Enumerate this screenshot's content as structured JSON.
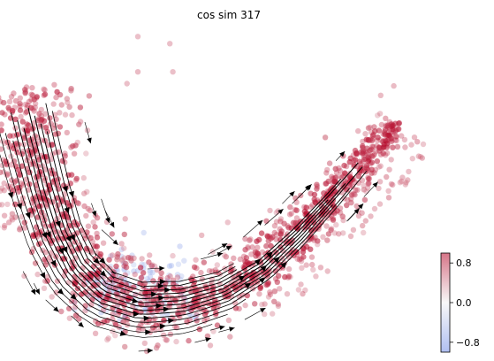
{
  "chart_data": {
    "type": "scatter",
    "title": "cos sim 317",
    "xlabel": "",
    "ylabel": "",
    "grid": false,
    "axes_visible": false,
    "colormap": {
      "low": "#6f8ce8",
      "mid": "#f2f2f2",
      "high": "#b40426"
    },
    "point_alpha": 0.35,
    "colorbar": {
      "range": [
        -1,
        1
      ],
      "ticks": [
        0.8,
        0.0,
        -0.8
      ],
      "tick_labels": [
        "0.8",
        "0.0",
        "−0.8"
      ]
    },
    "embedding_xlim": [
      -1.6,
      8.4
    ],
    "embedding_ylim": [
      -0.3,
      6.6
    ],
    "outlier_points": [
      {
        "x": 1.35,
        "y": 6.35,
        "v": 0.7
      },
      {
        "x": 2.08,
        "y": 6.2,
        "v": 0.7
      },
      {
        "x": 1.35,
        "y": 5.6,
        "v": 0.75
      },
      {
        "x": 2.15,
        "y": 5.6,
        "v": 0.7
      },
      {
        "x": 1.1,
        "y": 5.35,
        "v": 0.7
      },
      {
        "x": 7.2,
        "y": 5.3,
        "v": 0.75
      },
      {
        "x": 6.9,
        "y": 5.1,
        "v": 0.75
      }
    ]
  }
}
